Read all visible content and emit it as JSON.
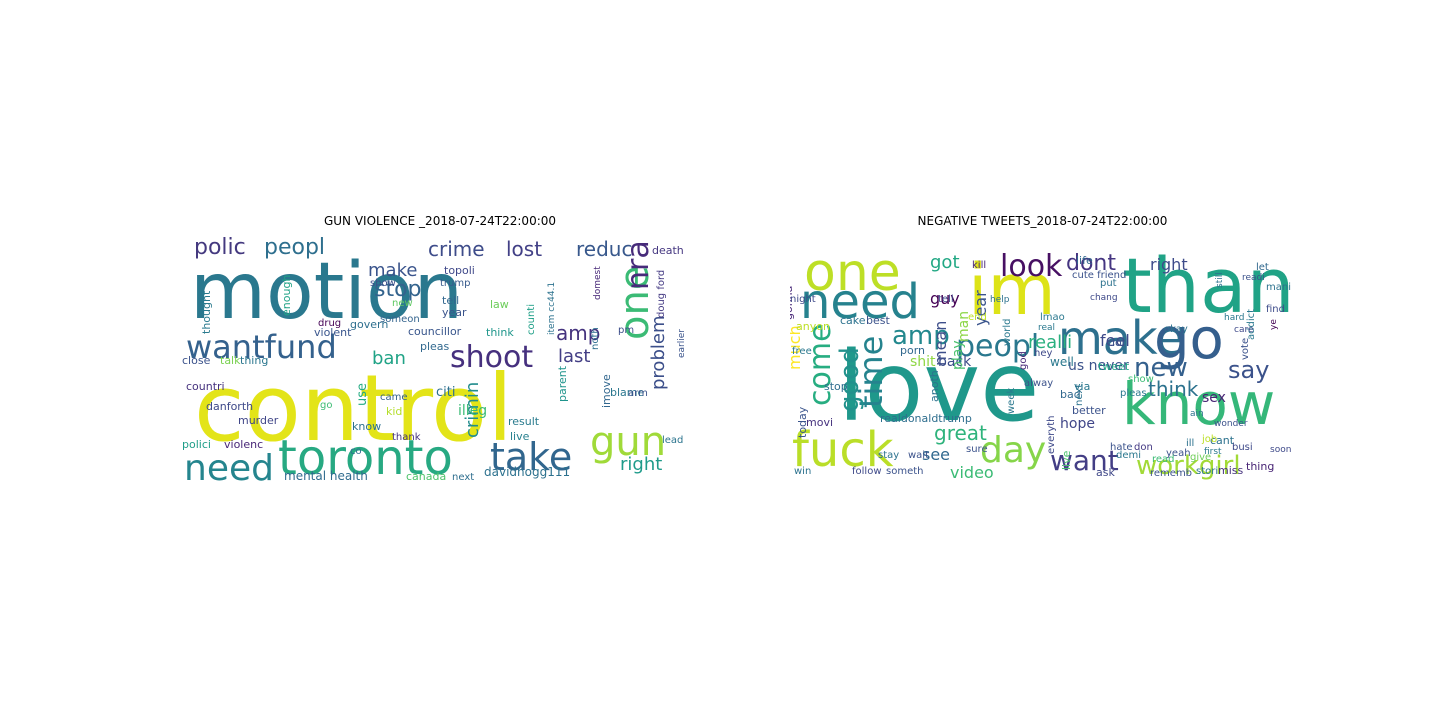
{
  "figure": {
    "left": {
      "title": "GUN VIOLENCE _2018-07-24T22:00:00",
      "words": [
        {
          "t": "motion",
          "c": "#2a788e"
        },
        {
          "t": "control",
          "c": "#e3e418"
        },
        {
          "t": "toronto",
          "c": "#27a982"
        },
        {
          "t": "gun",
          "c": "#a0da39"
        },
        {
          "t": "take",
          "c": "#31668e"
        },
        {
          "t": "need",
          "c": "#25858e"
        },
        {
          "t": "wantfund",
          "c": "#34618d"
        },
        {
          "t": "shoot",
          "c": "#46307e"
        },
        {
          "t": "one",
          "c": "#3bbb75"
        },
        {
          "t": "nra",
          "c": "#472b7a"
        },
        {
          "t": "polic",
          "c": "#44397f"
        },
        {
          "t": "peopl",
          "c": "#2e6f8e"
        },
        {
          "t": "stop",
          "c": "#33638d"
        },
        {
          "t": "crime",
          "c": "#3e4c8a"
        },
        {
          "t": "lost",
          "c": "#424086"
        },
        {
          "t": "reduc",
          "c": "#38588c"
        },
        {
          "t": "ban",
          "c": "#20a386"
        },
        {
          "t": "make",
          "c": "#3a548c"
        },
        {
          "t": "amp",
          "c": "#45337e"
        },
        {
          "t": "last",
          "c": "#433e85"
        },
        {
          "t": "problem",
          "c": "#3c4f8a"
        },
        {
          "t": "crimin",
          "c": "#228c8d"
        },
        {
          "t": "right",
          "c": "#1e9b8a"
        },
        {
          "t": "davidhogg111",
          "c": "#2c718e"
        },
        {
          "t": "mental health",
          "c": "#2f6b8e"
        },
        {
          "t": "canada",
          "c": "#4ec36b"
        },
        {
          "t": "next",
          "c": "#2e6e8e"
        },
        {
          "t": "death",
          "c": "#453781"
        },
        {
          "t": "doug ford",
          "c": "#443a83"
        },
        {
          "t": "earlier",
          "c": "#3a538b"
        },
        {
          "t": "pm",
          "c": "#3d4d8a"
        },
        {
          "t": "blame",
          "c": "#2a768e"
        },
        {
          "t": "noth",
          "c": "#2e6e8e"
        },
        {
          "t": "parent",
          "c": "#1f948c"
        },
        {
          "t": "result",
          "c": "#297b8e"
        },
        {
          "t": "live",
          "c": "#27808e"
        },
        {
          "t": "lead",
          "c": "#2b748e"
        },
        {
          "t": "citi",
          "c": "#2d708e"
        },
        {
          "t": "illeg",
          "c": "#3bbb75"
        },
        {
          "t": "imove",
          "c": "#31678e"
        },
        {
          "t": "topoli",
          "c": "#3f4889"
        },
        {
          "t": "trump",
          "c": "#375a8c"
        },
        {
          "t": "tell",
          "c": "#31668e"
        },
        {
          "t": "law",
          "c": "#6ccd5a"
        },
        {
          "t": "year",
          "c": "#3a548c"
        },
        {
          "t": "counti",
          "c": "#1fa088"
        },
        {
          "t": "item cc44.1",
          "c": "#2c728e"
        },
        {
          "t": "think",
          "c": "#1f968b"
        },
        {
          "t": "show",
          "c": "#3d4e8a"
        },
        {
          "t": "new",
          "c": "#5ec962"
        },
        {
          "t": "someon",
          "c": "#33638d"
        },
        {
          "t": "govern",
          "c": "#2e6f8e"
        },
        {
          "t": "councillor",
          "c": "#39568c"
        },
        {
          "t": "pleas",
          "c": "#31688e"
        },
        {
          "t": "violent",
          "c": "#39558c"
        },
        {
          "t": "drug",
          "c": "#440154"
        },
        {
          "t": "enough",
          "c": "#20a386"
        },
        {
          "t": "thought",
          "c": "#297a8e"
        },
        {
          "t": "close",
          "c": "#3b528b"
        },
        {
          "t": "talk",
          "c": "#7ad151"
        },
        {
          "t": "thing",
          "c": "#2a768e"
        },
        {
          "t": "countri",
          "c": "#46327e"
        },
        {
          "t": "use",
          "c": "#25ab82"
        },
        {
          "t": "kid",
          "c": "#b5de2b"
        },
        {
          "t": "know",
          "c": "#2c718e"
        },
        {
          "t": "came",
          "c": "#34618d"
        },
        {
          "t": "danforth",
          "c": "#3e4989"
        },
        {
          "t": "murder",
          "c": "#404688"
        },
        {
          "t": "polici",
          "c": "#1f9e89"
        },
        {
          "t": "violenc",
          "c": "#482677"
        },
        {
          "t": "thank",
          "c": "#46337f"
        },
        {
          "t": "go",
          "c": "#3dbc74"
        },
        {
          "t": "co",
          "c": "#2e6e8e"
        },
        {
          "t": "domest",
          "c": "#482878"
        },
        {
          "t": "arm",
          "c": "#3b528b"
        }
      ]
    },
    "right": {
      "title": "NEGATIVE TWEETS_2018-07-24T22:00:00",
      "words": [
        {
          "t": "love",
          "c": "#1f988b"
        },
        {
          "t": "thank",
          "c": "#20a386"
        },
        {
          "t": "one",
          "c": "#bddf26"
        },
        {
          "t": "im",
          "c": "#dde318"
        },
        {
          "t": "need",
          "c": "#26828e"
        },
        {
          "t": "make",
          "c": "#2d708e"
        },
        {
          "t": "go",
          "c": "#355f8d"
        },
        {
          "t": "know",
          "c": "#35b779"
        },
        {
          "t": "fuck",
          "c": "#bade28"
        },
        {
          "t": "day",
          "c": "#86d549"
        },
        {
          "t": "want",
          "c": "#433e85"
        },
        {
          "t": "workgirl",
          "c": "#a2da37"
        },
        {
          "t": "time",
          "c": "#25838e"
        },
        {
          "t": "come",
          "c": "#27ad81"
        },
        {
          "t": "good",
          "c": "#21918c"
        },
        {
          "t": "peopl",
          "c": "#2a788e"
        },
        {
          "t": "amp",
          "c": "#23888e"
        },
        {
          "t": "look",
          "c": "#471063"
        },
        {
          "t": "dont",
          "c": "#453581"
        },
        {
          "t": "right",
          "c": "#3e4c8a"
        },
        {
          "t": "new",
          "c": "#34608d"
        },
        {
          "t": "say",
          "c": "#3b528b"
        },
        {
          "t": "think",
          "c": "#2c728e"
        },
        {
          "t": "sex",
          "c": "#482475"
        },
        {
          "t": "feel",
          "c": "#3e4a89"
        },
        {
          "t": "realli",
          "c": "#2ab07f"
        },
        {
          "t": "us never",
          "c": "#3b528b"
        },
        {
          "t": "got",
          "c": "#22a884"
        },
        {
          "t": "year",
          "c": "#3a548c"
        },
        {
          "t": "mean",
          "c": "#3d4e8a"
        },
        {
          "t": "man",
          "c": "#8bd646"
        },
        {
          "t": "guy",
          "c": "#440154"
        },
        {
          "t": "back",
          "c": "#3d4d8a"
        },
        {
          "t": "shit",
          "c": "#8fd744"
        },
        {
          "t": "great",
          "c": "#2eb37c"
        },
        {
          "t": "see",
          "c": "#31688e"
        },
        {
          "t": "video",
          "c": "#3bbb75"
        },
        {
          "t": "hope",
          "c": "#404688"
        },
        {
          "t": "well",
          "c": "#2a788e"
        },
        {
          "t": "lol",
          "c": "#3b528b"
        },
        {
          "t": "okay",
          "c": "#2c728e"
        },
        {
          "t": "life",
          "c": "#31688e"
        },
        {
          "t": "much",
          "c": "#fde725"
        },
        {
          "t": "today",
          "c": "#3a548c"
        },
        {
          "t": "stop",
          "c": "#2e6e8e"
        },
        {
          "t": "movi",
          "c": "#46327e"
        },
        {
          "t": "play",
          "c": "#4ac16d"
        },
        {
          "t": "cant",
          "c": "#2c728e"
        },
        {
          "t": "give",
          "c": "#6ece58"
        },
        {
          "t": "thing",
          "c": "#482475"
        },
        {
          "t": "miss",
          "c": "#46327e"
        },
        {
          "t": "stori",
          "c": "#2b748e"
        },
        {
          "t": "rememb",
          "c": "#3b528b"
        },
        {
          "t": "don",
          "c": "#443983"
        },
        {
          "t": "ask",
          "c": "#3f4788"
        },
        {
          "t": "live",
          "c": "#4ac16d"
        },
        {
          "t": "better",
          "c": "#3b528b"
        },
        {
          "t": "bad",
          "c": "#31688e"
        },
        {
          "t": "via",
          "c": "#2a788e"
        },
        {
          "t": "tweet",
          "c": "#20a386"
        },
        {
          "t": "porn",
          "c": "#31688e"
        },
        {
          "t": "realdonaldtrump",
          "c": "#2e6e8e"
        },
        {
          "t": "follow",
          "c": "#3e4989"
        },
        {
          "t": "someth",
          "c": "#3b528b"
        },
        {
          "t": "anoth",
          "c": "#2c728e"
        },
        {
          "t": "week",
          "c": "#2a788e"
        },
        {
          "t": "gonna",
          "c": "#482878"
        },
        {
          "t": "anyon",
          "c": "#bddf26"
        },
        {
          "t": "cake",
          "c": "#2c728e"
        },
        {
          "t": "best",
          "c": "#3b528b"
        },
        {
          "t": "free",
          "c": "#2a788e"
        },
        {
          "t": "kill",
          "c": "#482475"
        },
        {
          "t": "tell",
          "c": "#3e4989"
        },
        {
          "t": "let",
          "c": "#31688e"
        },
        {
          "t": "mani",
          "c": "#2c728e"
        },
        {
          "t": "find",
          "c": "#3e4c8a"
        },
        {
          "t": "addict",
          "c": "#2a788e"
        },
        {
          "t": "vote",
          "c": "#3b528b"
        },
        {
          "t": "busi",
          "c": "#3e4989"
        },
        {
          "t": "job",
          "c": "#bddf26"
        },
        {
          "t": "ill",
          "c": "#2c728e"
        },
        {
          "t": "yeah",
          "c": "#3b528b"
        },
        {
          "t": "read",
          "c": "#3bbb75"
        },
        {
          "t": "demi",
          "c": "#2a788e"
        },
        {
          "t": "everyth",
          "c": "#3e4989"
        },
        {
          "t": "next",
          "c": "#2c728e"
        },
        {
          "t": "alway",
          "c": "#3b528b"
        },
        {
          "t": "god",
          "c": "#482878"
        },
        {
          "t": "end",
          "c": "#bddf26"
        },
        {
          "t": "cute friend",
          "c": "#3b528b"
        },
        {
          "t": "put",
          "c": "#2c728e"
        },
        {
          "t": "lmao",
          "c": "#2a788e"
        },
        {
          "t": "ye",
          "c": "#440154"
        },
        {
          "t": "stay",
          "c": "#2c728e"
        },
        {
          "t": "wait",
          "c": "#3b528b"
        },
        {
          "t": "world",
          "c": "#2a788e"
        },
        {
          "t": "hey",
          "c": "#3e4989"
        },
        {
          "t": "show",
          "c": "#3bbb75"
        },
        {
          "t": "pleas",
          "c": "#2a788e"
        },
        {
          "t": "hate",
          "c": "#3b528b"
        },
        {
          "t": "win",
          "c": "#2c728e"
        },
        {
          "t": "night",
          "c": "#3e4989"
        },
        {
          "t": "help",
          "c": "#2c728e"
        },
        {
          "t": "sure",
          "c": "#3b528b"
        },
        {
          "t": "real",
          "c": "#2a788e"
        },
        {
          "t": "chang",
          "c": "#3e4989"
        },
        {
          "t": "ain",
          "c": "#2c728e"
        },
        {
          "t": "wonder",
          "c": "#3b528b"
        },
        {
          "t": "hard",
          "c": "#2a788e"
        },
        {
          "t": "care",
          "c": "#3e4989"
        },
        {
          "t": "still",
          "c": "#2c728e"
        },
        {
          "t": "readi",
          "c": "#3b528b"
        },
        {
          "t": "first",
          "c": "#2a788e"
        },
        {
          "t": "soon",
          "c": "#3e4989"
        },
        {
          "t": "full",
          "c": "#2c728e"
        }
      ]
    }
  }
}
